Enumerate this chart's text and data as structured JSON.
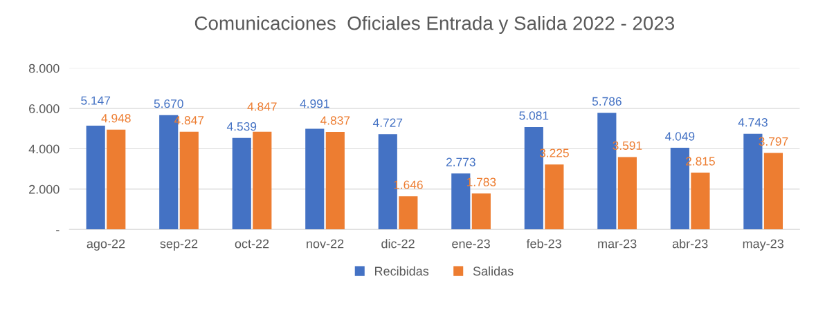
{
  "chart_data": {
    "type": "bar",
    "title": "Comunicaciones  Oficiales Entrada y Salida 2022 - 2023",
    "categories": [
      "ago-22",
      "sep-22",
      "oct-22",
      "nov-22",
      "dic-22",
      "ene-23",
      "feb-23",
      "mar-23",
      "abr-23",
      "may-23"
    ],
    "series": [
      {
        "name": "Recibidas",
        "color": "#4472c4",
        "values": [
          5147,
          5670,
          4539,
          4991,
          4727,
          2773,
          5081,
          5786,
          4049,
          4743
        ],
        "value_labels": [
          "5.147",
          "5.670",
          "4.539",
          "4.991",
          "4.727",
          "2.773",
          "5.081",
          "5.786",
          "4.049",
          "4.743"
        ]
      },
      {
        "name": "Salidas",
        "color": "#ed7d31",
        "values": [
          4948,
          4847,
          4847,
          4837,
          1646,
          1783,
          3225,
          3591,
          2815,
          3797
        ],
        "value_labels": [
          "4.948",
          "4.847",
          "4.847",
          "4.837",
          "1.646",
          "1.783",
          "3.225",
          "3.591",
          "2.815",
          "3.797"
        ]
      }
    ],
    "ylim": [
      0,
      8000
    ],
    "yticks": [
      {
        "value": 0,
        "label": "-"
      },
      {
        "value": 2000,
        "label": "2.000"
      },
      {
        "value": 4000,
        "label": "4.000"
      },
      {
        "value": 6000,
        "label": "6.000"
      },
      {
        "value": 8000,
        "label": "8.000"
      }
    ],
    "grid": "y",
    "legend": "bottom"
  }
}
